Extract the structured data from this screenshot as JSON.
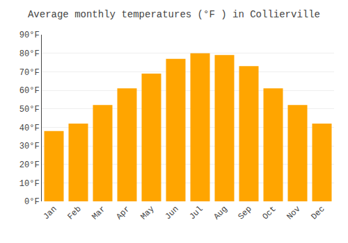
{
  "chart_data": {
    "type": "bar",
    "title": "Average monthly temperatures (°F ) in Collierville",
    "categories": [
      "Jan",
      "Feb",
      "Mar",
      "Apr",
      "May",
      "Jun",
      "Jul",
      "Aug",
      "Sep",
      "Oct",
      "Nov",
      "Dec"
    ],
    "values": [
      38,
      42,
      52,
      61,
      69,
      77,
      80,
      79,
      73,
      61,
      52,
      42
    ],
    "color": "#FFA500",
    "ylim": [
      0,
      90
    ],
    "yticks": [
      {
        "value": 0,
        "label": "0°F"
      },
      {
        "value": 10,
        "label": "10°F"
      },
      {
        "value": 20,
        "label": "20°F"
      },
      {
        "value": 30,
        "label": "30°F"
      },
      {
        "value": 40,
        "label": "40°F"
      },
      {
        "value": 50,
        "label": "50°F"
      },
      {
        "value": 60,
        "label": "60°F"
      },
      {
        "value": 70,
        "label": "70°F"
      },
      {
        "value": 80,
        "label": "80°F"
      },
      {
        "value": 90,
        "label": "90°F"
      }
    ],
    "grid": true
  }
}
